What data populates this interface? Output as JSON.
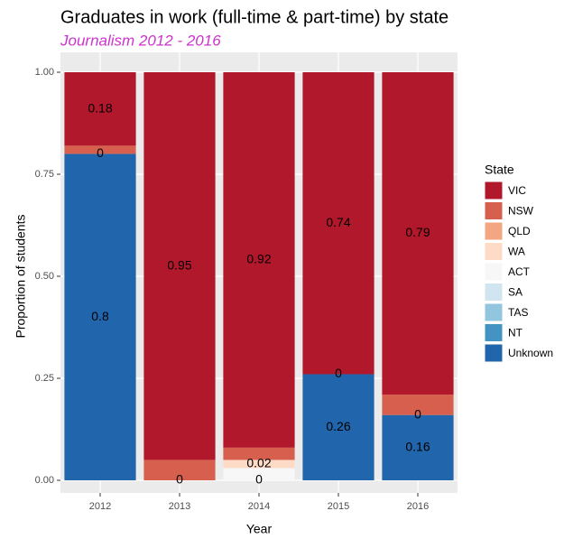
{
  "chart_data": {
    "type": "stacked_bar",
    "title": "Graduates in work (full-time & part-time) by state",
    "subtitle": "Journalism 2012 - 2016",
    "x_label": "Year",
    "y_label": "Proportion of students",
    "legend_title": "State",
    "categories": [
      "2012",
      "2013",
      "2014",
      "2015",
      "2016"
    ],
    "ylim": [
      0,
      1
    ],
    "yticks": [
      {
        "value": 0,
        "label": "0.00"
      },
      {
        "value": 0.25,
        "label": "0.25"
      },
      {
        "value": 0.5,
        "label": "0.50"
      },
      {
        "value": 0.75,
        "label": "0.75"
      },
      {
        "value": 1,
        "label": "1.00"
      }
    ],
    "grid": true,
    "legend": "right",
    "series": [
      {
        "name": "VIC",
        "color": "#b2182b",
        "values": [
          0.18,
          0.95,
          0.92,
          0.74,
          0.79
        ],
        "value_labels": [
          "0.18",
          "0.95",
          "0.92",
          "0.74",
          "0.79"
        ]
      },
      {
        "name": "NSW",
        "color": "#d6604d",
        "values": [
          0.02,
          0.05,
          0.03,
          null,
          0.05
        ],
        "value_labels": [
          null,
          null,
          null,
          null,
          null
        ]
      },
      {
        "name": "QLD",
        "color": "#f4a582",
        "values": [
          null,
          null,
          null,
          null,
          null
        ],
        "value_labels": [
          null,
          null,
          null,
          null,
          null
        ]
      },
      {
        "name": "WA",
        "color": "#fddbc7",
        "values": [
          null,
          null,
          0.02,
          null,
          null
        ],
        "value_labels": [
          null,
          null,
          "0.02",
          null,
          null
        ]
      },
      {
        "name": "ACT",
        "color": "#f7f7f7",
        "values": [
          null,
          null,
          0.03,
          null,
          null
        ],
        "value_labels": [
          null,
          null,
          null,
          null,
          null
        ]
      },
      {
        "name": "SA",
        "color": "#d1e5f0",
        "values": [
          null,
          null,
          null,
          null,
          null
        ],
        "value_labels": [
          null,
          null,
          null,
          null,
          null
        ]
      },
      {
        "name": "TAS",
        "color": "#92c5de",
        "values": [
          null,
          null,
          null,
          null,
          null
        ],
        "value_labels": [
          null,
          null,
          null,
          null,
          null
        ]
      },
      {
        "name": "NT",
        "color": "#4393c3",
        "values": [
          0,
          null,
          null,
          0,
          0
        ],
        "value_labels": [
          "0",
          null,
          null,
          "0",
          "0"
        ]
      },
      {
        "name": "Unknown",
        "color": "#2166ac",
        "values": [
          0.8,
          0,
          0,
          0.26,
          0.16
        ],
        "value_labels": [
          "0.8",
          "0",
          "0",
          "0.26",
          "0.16"
        ]
      }
    ]
  }
}
